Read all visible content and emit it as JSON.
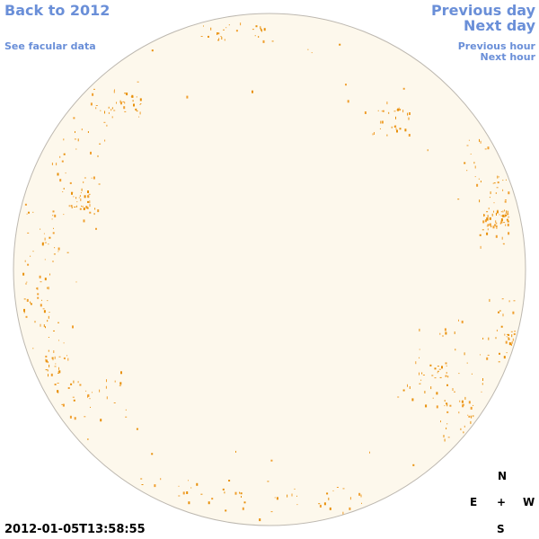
{
  "header": {
    "back_link": "Back to 2012",
    "facular_link": "See facular data"
  },
  "navigation": {
    "previous_day": "Previous day",
    "next_day": "Next day",
    "previous_hour": "Previous hour",
    "next_hour": "Next hour"
  },
  "timestamp": "2012-01-05T13:58:55",
  "compass": {
    "north": "N",
    "east": "E",
    "center": "+",
    "west": "W",
    "south": "S"
  }
}
